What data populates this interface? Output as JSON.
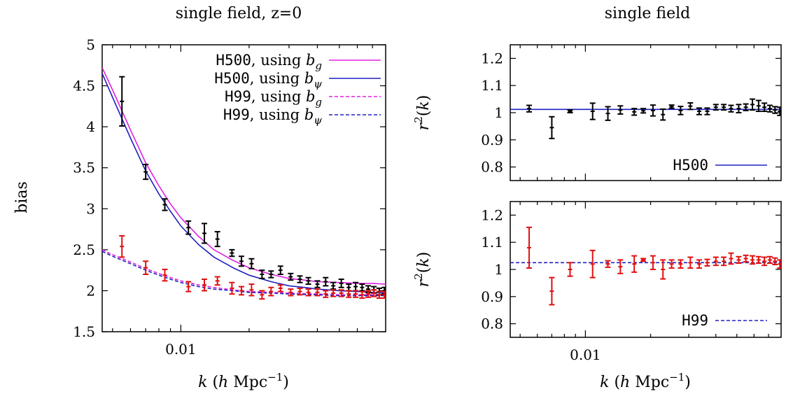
{
  "chart_data": [
    {
      "type": "line",
      "title": "single field, z=0",
      "xlabel_prefix": "k (h Mpc",
      "xlabel_sup": "−1",
      "xlabel_suffix": ")",
      "ylabel": "bias",
      "xscale": "log",
      "xlim": [
        0.0045,
        0.08
      ],
      "ylim": [
        1.5,
        5
      ],
      "xticks": [
        0.01
      ],
      "xtick_labels": [
        "0.01"
      ],
      "yticks": [
        1.5,
        2,
        2.5,
        3,
        3.5,
        4,
        4.5,
        5
      ],
      "ytick_labels": [
        "1.5",
        "2",
        "2.5",
        "3",
        "3.5",
        "4",
        "4.5",
        "5"
      ],
      "legend_position": "top-right",
      "legend": [
        {
          "code": "H500",
          "text": ", using b",
          "sub": "g",
          "color": "#e020e0",
          "dash": false
        },
        {
          "code": "H500",
          "text": ", using b",
          "sub": "ψ",
          "color": "#2020c0",
          "dash": false
        },
        {
          "code": "H99",
          "text": ", using b",
          "sub": "g",
          "color": "#e020e0",
          "dash": true
        },
        {
          "code": "H99",
          "text": ", using b",
          "sub": "ψ",
          "color": "#2020c0",
          "dash": true
        }
      ],
      "series": [
        {
          "name": "H500, using b_g",
          "kind": "line",
          "color": "#e020e0",
          "dash": false,
          "x": [
            0.0045,
            0.005,
            0.006,
            0.007,
            0.008,
            0.009,
            0.01,
            0.012,
            0.014,
            0.017,
            0.02,
            0.025,
            0.03,
            0.035,
            0.04,
            0.05,
            0.06,
            0.07,
            0.08
          ],
          "y": [
            4.72,
            4.45,
            3.96,
            3.56,
            3.28,
            3.06,
            2.89,
            2.66,
            2.5,
            2.37,
            2.28,
            2.2,
            2.15,
            2.13,
            2.11,
            2.1,
            2.09,
            2.09,
            2.08
          ]
        },
        {
          "name": "H500, using b_ψ",
          "kind": "line",
          "color": "#2020c0",
          "dash": false,
          "x": [
            0.0045,
            0.005,
            0.006,
            0.007,
            0.008,
            0.009,
            0.01,
            0.012,
            0.014,
            0.017,
            0.02,
            0.025,
            0.03,
            0.035,
            0.04,
            0.05,
            0.06,
            0.07,
            0.08
          ],
          "y": [
            4.65,
            4.36,
            3.86,
            3.46,
            3.18,
            2.97,
            2.79,
            2.56,
            2.41,
            2.28,
            2.19,
            2.11,
            2.06,
            2.04,
            2.02,
            2.0,
            1.99,
            1.98,
            1.97
          ]
        },
        {
          "name": "H99, using b_g",
          "kind": "line",
          "color": "#e020e0",
          "dash": true,
          "x": [
            0.0045,
            0.005,
            0.006,
            0.007,
            0.008,
            0.009,
            0.01,
            0.012,
            0.014,
            0.017,
            0.02,
            0.025,
            0.03,
            0.04,
            0.05,
            0.06,
            0.08
          ],
          "y": [
            2.5,
            2.44,
            2.35,
            2.27,
            2.21,
            2.16,
            2.12,
            2.07,
            2.04,
            2.01,
            1.99,
            1.98,
            1.97,
            1.96,
            1.95,
            1.95,
            1.95
          ]
        },
        {
          "name": "H99, using b_ψ",
          "kind": "line",
          "color": "#2020c0",
          "dash": true,
          "x": [
            0.0045,
            0.005,
            0.006,
            0.007,
            0.008,
            0.009,
            0.01,
            0.012,
            0.014,
            0.017,
            0.02,
            0.025,
            0.03,
            0.04,
            0.05,
            0.06,
            0.08
          ],
          "y": [
            2.48,
            2.42,
            2.33,
            2.25,
            2.19,
            2.14,
            2.1,
            2.05,
            2.02,
            2.0,
            1.98,
            1.97,
            1.96,
            1.95,
            1.94,
            1.94,
            1.94
          ]
        },
        {
          "name": "H500 data",
          "kind": "errorbar",
          "color": "#000000",
          "x": [
            0.0055,
            0.007,
            0.0085,
            0.0108,
            0.0127,
            0.0145,
            0.0168,
            0.0185,
            0.0205,
            0.0228,
            0.025,
            0.0275,
            0.0305,
            0.0335,
            0.0365,
            0.04,
            0.0435,
            0.047,
            0.051,
            0.055,
            0.059,
            0.063,
            0.067,
            0.071,
            0.075,
            0.079
          ],
          "y": [
            4.31,
            3.45,
            3.05,
            2.77,
            2.7,
            2.63,
            2.46,
            2.36,
            2.33,
            2.2,
            2.2,
            2.25,
            2.17,
            2.14,
            2.12,
            2.08,
            2.11,
            2.06,
            2.09,
            2.04,
            2.05,
            2.04,
            2.02,
            2.01,
            1.99,
            2.0
          ],
          "err": [
            0.3,
            0.09,
            0.07,
            0.08,
            0.12,
            0.09,
            0.04,
            0.06,
            0.06,
            0.05,
            0.04,
            0.05,
            0.04,
            0.04,
            0.04,
            0.04,
            0.05,
            0.04,
            0.05,
            0.04,
            0.05,
            0.04,
            0.04,
            0.04,
            0.04,
            0.04
          ]
        },
        {
          "name": "H99 data",
          "kind": "errorbar",
          "color": "#e01010",
          "x": [
            0.0055,
            0.007,
            0.0085,
            0.0108,
            0.0127,
            0.0145,
            0.0168,
            0.0185,
            0.0205,
            0.0228,
            0.025,
            0.0275,
            0.0305,
            0.0335,
            0.0365,
            0.04,
            0.0435,
            0.047,
            0.051,
            0.055,
            0.059,
            0.063,
            0.067,
            0.071,
            0.075,
            0.079
          ],
          "y": [
            2.54,
            2.28,
            2.19,
            2.05,
            2.07,
            2.12,
            2.03,
            2.0,
            2.01,
            1.95,
            1.99,
            2.03,
            1.98,
            1.99,
            1.98,
            1.98,
            1.96,
            1.97,
            1.97,
            1.96,
            1.96,
            1.95,
            1.96,
            1.97,
            1.95,
            1.95
          ],
          "err": [
            0.13,
            0.08,
            0.07,
            0.06,
            0.07,
            0.05,
            0.07,
            0.05,
            0.07,
            0.05,
            0.05,
            0.04,
            0.04,
            0.04,
            0.04,
            0.04,
            0.04,
            0.04,
            0.04,
            0.04,
            0.04,
            0.04,
            0.04,
            0.04,
            0.04,
            0.04
          ]
        }
      ]
    },
    {
      "type": "line",
      "title": "single field",
      "xlabel_prefix": "",
      "xlabel_sup": "",
      "xlabel_suffix": "",
      "ylabel_main": "r",
      "ylabel_sup": "2",
      "ylabel_suffix": "(k)",
      "xscale": "log",
      "xlim": [
        0.0045,
        0.08
      ],
      "ylim": [
        0.75,
        1.25
      ],
      "xticks": [
        0.01
      ],
      "xtick_labels": [],
      "yticks": [
        0.8,
        0.9,
        1.0,
        1.1,
        1.2
      ],
      "ytick_labels": [
        "0.8",
        "0.9",
        "1",
        "1.1",
        "1.2"
      ],
      "legend_position": "bottom-right",
      "legend": [
        {
          "code": "H500",
          "text": "",
          "sub": "",
          "color": "#2020c0",
          "dash": false
        }
      ],
      "series": [
        {
          "name": "H500",
          "kind": "line",
          "color": "#2020c0",
          "dash": false,
          "x": [
            0.0045,
            0.08
          ],
          "y": [
            1.012,
            1.012
          ]
        },
        {
          "name": "H500 r2 data",
          "kind": "errorbar",
          "color": "#000000",
          "x": [
            0.0055,
            0.007,
            0.0085,
            0.0108,
            0.0127,
            0.0145,
            0.0168,
            0.0185,
            0.0205,
            0.0228,
            0.025,
            0.0275,
            0.0305,
            0.0335,
            0.0365,
            0.04,
            0.0435,
            0.047,
            0.051,
            0.055,
            0.059,
            0.063,
            0.067,
            0.071,
            0.075,
            0.079
          ],
          "y": [
            1.015,
            0.945,
            1.005,
            1.005,
            0.997,
            1.01,
            1.003,
            1.007,
            1.008,
            0.993,
            1.022,
            1.008,
            1.024,
            1.005,
            1.005,
            1.02,
            1.02,
            1.015,
            1.015,
            1.02,
            1.03,
            1.025,
            1.02,
            1.015,
            1.01,
            1.005
          ],
          "err": [
            0.012,
            0.04,
            0.005,
            0.03,
            0.025,
            0.015,
            0.012,
            0.008,
            0.02,
            0.02,
            0.006,
            0.015,
            0.012,
            0.012,
            0.012,
            0.01,
            0.01,
            0.012,
            0.015,
            0.012,
            0.02,
            0.02,
            0.015,
            0.012,
            0.012,
            0.015
          ]
        }
      ]
    },
    {
      "type": "line",
      "title": "",
      "xlabel_prefix": "k (h Mpc",
      "xlabel_sup": "−1",
      "xlabel_suffix": ")",
      "ylabel_main": "r",
      "ylabel_sup": "2",
      "ylabel_suffix": "(k)",
      "xscale": "log",
      "xlim": [
        0.0045,
        0.08
      ],
      "ylim": [
        0.75,
        1.25
      ],
      "xticks": [
        0.01
      ],
      "xtick_labels": [
        "0.01"
      ],
      "yticks": [
        0.8,
        0.9,
        1.0,
        1.1,
        1.2
      ],
      "ytick_labels": [
        "0.8",
        "0.9",
        "1",
        "1.1",
        "1.2"
      ],
      "legend_position": "bottom-right",
      "legend": [
        {
          "code": "H99",
          "text": "",
          "sub": "",
          "color": "#2020c0",
          "dash": true
        }
      ],
      "series": [
        {
          "name": "H99",
          "kind": "line",
          "color": "#2020c0",
          "dash": true,
          "x": [
            0.0045,
            0.08
          ],
          "y": [
            1.025,
            1.025
          ]
        },
        {
          "name": "H99 r2 data",
          "kind": "errorbar",
          "color": "#e01010",
          "x": [
            0.0055,
            0.007,
            0.0085,
            0.0108,
            0.0127,
            0.0145,
            0.0168,
            0.0185,
            0.0205,
            0.0228,
            0.025,
            0.0275,
            0.0305,
            0.0335,
            0.0365,
            0.04,
            0.0435,
            0.047,
            0.051,
            0.055,
            0.059,
            0.063,
            0.067,
            0.071,
            0.075,
            0.079
          ],
          "y": [
            1.08,
            0.92,
            1.0,
            1.02,
            1.02,
            1.01,
            1.02,
            1.035,
            1.025,
            1.0,
            1.02,
            1.02,
            1.025,
            1.02,
            1.025,
            1.03,
            1.03,
            1.04,
            1.035,
            1.04,
            1.035,
            1.035,
            1.03,
            1.035,
            1.03,
            1.02
          ],
          "err": [
            0.075,
            0.05,
            0.025,
            0.05,
            0.012,
            0.025,
            0.03,
            0.005,
            0.025,
            0.035,
            0.015,
            0.015,
            0.02,
            0.015,
            0.012,
            0.015,
            0.015,
            0.02,
            0.012,
            0.012,
            0.015,
            0.012,
            0.015,
            0.012,
            0.012,
            0.015
          ]
        }
      ]
    }
  ]
}
